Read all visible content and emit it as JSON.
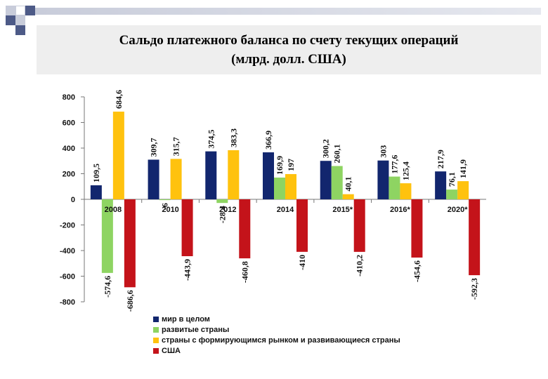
{
  "title": {
    "line1": "Сальдо платежного баланса по счету текущих операций",
    "line2": "(млрд. долл. США)"
  },
  "colors": {
    "world": "#12266e",
    "developed": "#8ed462",
    "emerging": "#ffc20e",
    "usa": "#c4131a",
    "deco_dark": "#4d5a87",
    "deco_light": "#c8ccda"
  },
  "chart_data": {
    "type": "bar",
    "title": "Сальдо платежного баланса по счету текущих операций (млрд. долл. США)",
    "categories": [
      "2008",
      "2010",
      "2012",
      "2014",
      "2015*",
      "2016*",
      "2020*"
    ],
    "ylim": [
      -800,
      800
    ],
    "yticks": [
      "800",
      "600",
      "400",
      "200",
      "0",
      "-200",
      "-400",
      "-600",
      "-800"
    ],
    "series": [
      {
        "key": "world",
        "name": "мир в целом",
        "values": [
          109.5,
          309.7,
          374.5,
          366.9,
          300.2,
          303,
          217.9
        ],
        "labels": [
          "109,5",
          "309,7",
          "374,5",
          "366,9",
          "300,2",
          "303",
          "217,9"
        ]
      },
      {
        "key": "developed",
        "name": "развитые страны",
        "values": [
          -574.6,
          -6,
          -28.4,
          169.9,
          260.1,
          177.6,
          76.1
        ],
        "labels": [
          "-574,6",
          "-6",
          "-28,4",
          "169,9",
          "260,1",
          "177,6",
          "76,1"
        ]
      },
      {
        "key": "emerging",
        "name": "страны с формирующимся рынком и развивающиеся страны",
        "values": [
          684.6,
          315.7,
          383.3,
          197,
          40.1,
          125.4,
          141.9
        ],
        "labels": [
          "684,6",
          "315,7",
          "383,3",
          "197",
          "40,1",
          "125,4",
          "141,9"
        ]
      },
      {
        "key": "usa",
        "name": "США",
        "values": [
          -686.6,
          -443.9,
          -460.8,
          -410,
          -410.2,
          -454.6,
          -592.3
        ],
        "labels": [
          "-686,6",
          "-443,9",
          "-460,8",
          "-410",
          "-410,2",
          "-454,6",
          "-592,3"
        ]
      }
    ]
  }
}
